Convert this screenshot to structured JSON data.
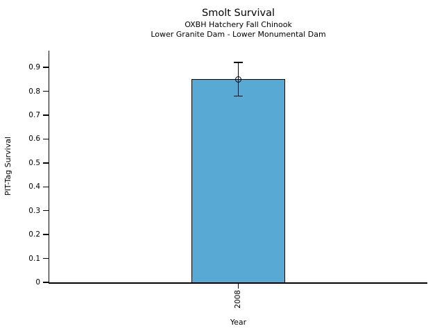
{
  "chart_data": {
    "type": "bar",
    "title": "Smolt Survival",
    "subtitle_line1": "OXBH Hatchery Fall Chinook",
    "subtitle_line2": "Lower Granite Dam - Lower Monumental Dam",
    "xlabel": "Year",
    "ylabel": "PIT-Tag Survival",
    "categories": [
      "2008"
    ],
    "values": [
      0.85
    ],
    "error_bars": [
      {
        "low": 0.78,
        "high": 0.92
      }
    ],
    "ylim": [
      0,
      0.97
    ],
    "yticks": [
      0,
      0.1,
      0.2,
      0.3,
      0.4,
      0.5,
      0.6,
      0.7,
      0.8,
      0.9
    ],
    "ytick_labels": [
      "0",
      "0.1",
      "0.2",
      "0.3",
      "0.4",
      "0.5",
      "0.6",
      "0.7",
      "0.8",
      "0.9"
    ],
    "bar_color": "#59A9D5",
    "bar_edge_color": "#000000",
    "errorbar_color": "#000000",
    "marker": "open-circle",
    "grid": false,
    "legend_position": "none",
    "background_color": "#FFFFFF"
  }
}
